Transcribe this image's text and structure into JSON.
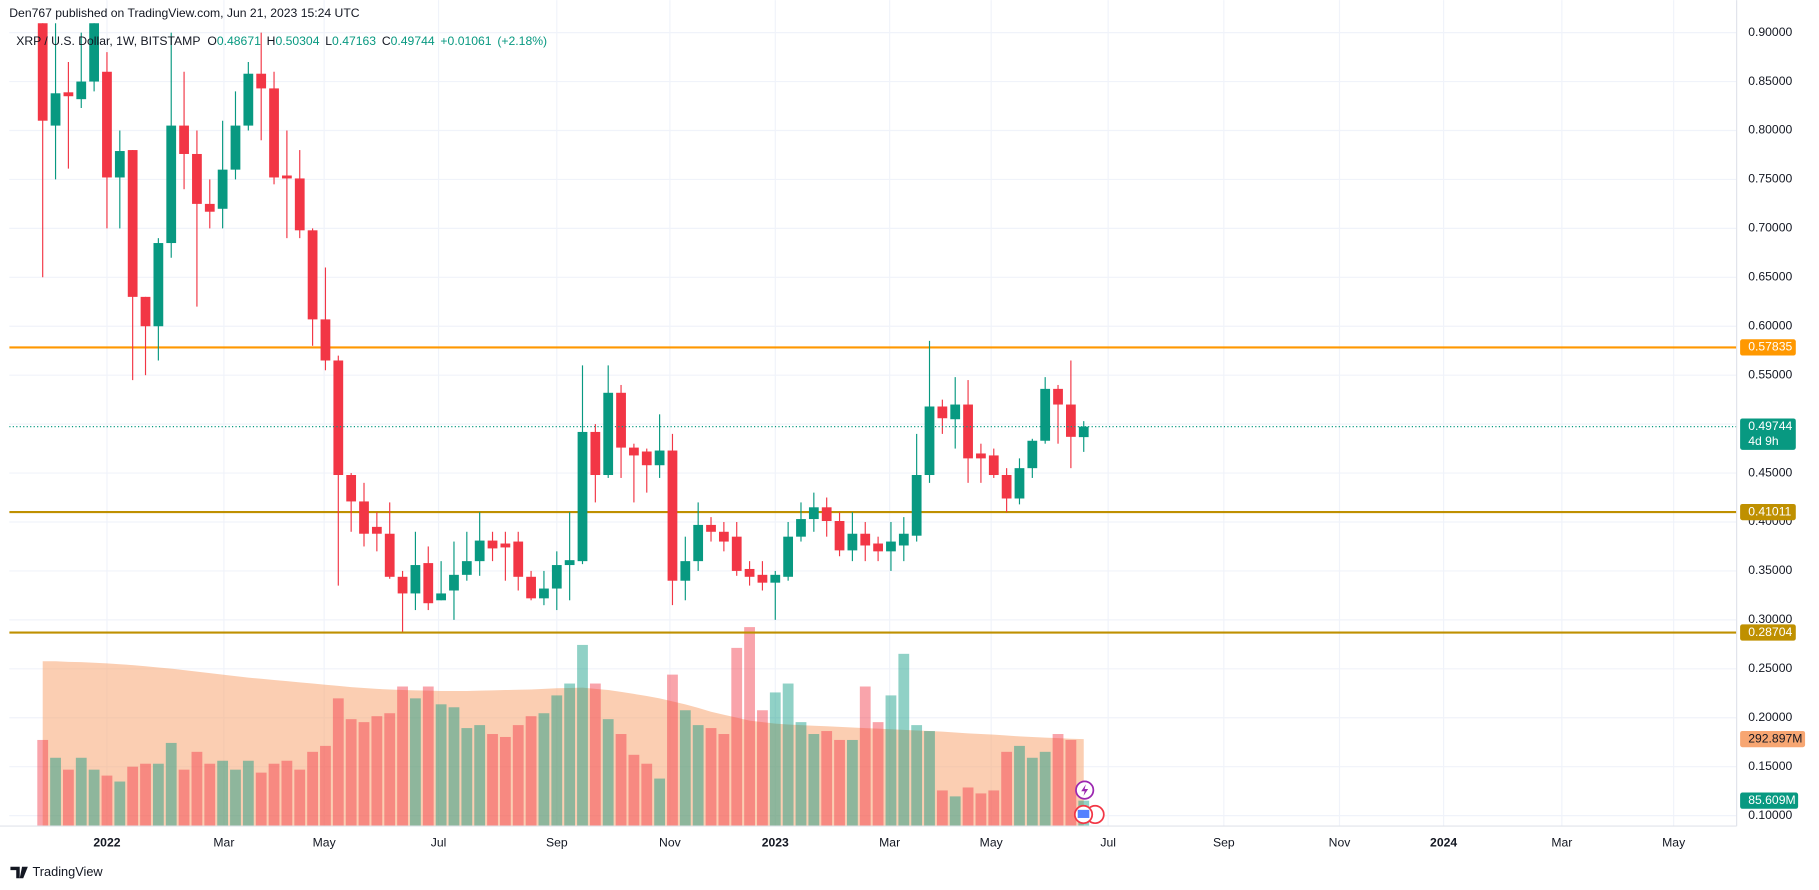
{
  "chart_data": {
    "type": "candlestick",
    "header": "Den767 published on TradingView.com, Jun 21, 2023 15:24 UTC",
    "symbol": "XRP / U.S. Dollar, 1W, BITSTAMP",
    "ohlc_letters": [
      "O",
      "H",
      "L",
      "C"
    ],
    "change": "+0.01061",
    "change_pct": "(+2.18%)",
    "up_color": "#089981",
    "down_color": "#f23645",
    "categories": [
      null,
      null,
      null,
      null,
      null,
      null,
      null,
      null,
      null,
      null,
      null,
      null,
      null,
      null,
      null,
      null,
      null,
      null,
      null,
      null,
      null,
      null,
      null,
      null,
      null,
      null,
      null,
      null,
      null,
      null,
      null,
      null,
      null,
      null,
      null,
      null,
      null,
      null,
      null,
      null,
      null,
      null,
      null,
      null,
      null,
      null,
      null,
      null,
      null,
      null,
      null,
      null,
      null,
      null,
      null,
      null,
      null,
      null,
      null,
      null,
      null,
      null,
      null,
      null,
      null,
      null,
      null,
      null,
      null,
      null,
      null,
      null,
      null,
      null,
      null,
      null,
      null,
      null,
      null,
      null,
      null,
      null
    ],
    "open": [
      0.91,
      0.805,
      0.839,
      0.832,
      0.85,
      0.86,
      0.752,
      0.78,
      0.63,
      0.6,
      0.685,
      0.805,
      0.776,
      0.725,
      0.72,
      0.76,
      0.805,
      0.858,
      0.843,
      0.754,
      0.751,
      0.698,
      0.607,
      0.565,
      0.448,
      0.421,
      0.395,
      0.388,
      0.344,
      0.327,
      0.358,
      0.32,
      0.33,
      0.346,
      0.36,
      0.381,
      0.378,
      0.38,
      0.344,
      0.322,
      0.332,
      0.356,
      0.36,
      0.492,
      0.448,
      0.532,
      0.476,
      0.472,
      0.458,
      0.473,
      0.34,
      0.36,
      0.397,
      0.39,
      0.385,
      0.352,
      0.346,
      0.338,
      0.344,
      0.385,
      0.403,
      0.415,
      0.401,
      0.371,
      0.388,
      0.378,
      0.37,
      0.376,
      0.386,
      0.448,
      0.518,
      0.505,
      0.52,
      0.47,
      0.468,
      0.448,
      0.424,
      0.455,
      0.483,
      0.536,
      0.52,
      0.48671
    ],
    "high": [
      0.93,
      0.93,
      0.87,
      0.9,
      0.93,
      0.88,
      0.8,
      0.78,
      0.63,
      0.69,
      0.9,
      0.86,
      0.8,
      0.75,
      0.81,
      0.84,
      0.87,
      0.9,
      0.86,
      0.8,
      0.78,
      0.7,
      0.66,
      0.57,
      0.45,
      0.44,
      0.41,
      0.42,
      0.35,
      0.39,
      0.375,
      0.36,
      0.38,
      0.39,
      0.41,
      0.39,
      0.39,
      0.39,
      0.35,
      0.35,
      0.37,
      0.41,
      0.56,
      0.5,
      0.56,
      0.54,
      0.48,
      0.475,
      0.51,
      0.49,
      0.385,
      0.42,
      0.405,
      0.4,
      0.4,
      0.36,
      0.36,
      0.35,
      0.4,
      0.42,
      0.43,
      0.425,
      0.41,
      0.41,
      0.4,
      0.385,
      0.4,
      0.405,
      0.49,
      0.585,
      0.525,
      0.548,
      0.545,
      0.48,
      0.475,
      0.455,
      0.465,
      0.485,
      0.548,
      0.54,
      0.565,
      0.50304
    ],
    "low": [
      0.65,
      0.75,
      0.761,
      0.823,
      0.84,
      0.7,
      0.7,
      0.545,
      0.55,
      0.565,
      0.67,
      0.74,
      0.62,
      0.7,
      0.7,
      0.75,
      0.8,
      0.79,
      0.745,
      0.69,
      0.69,
      0.58,
      0.555,
      0.335,
      0.39,
      0.375,
      0.37,
      0.342,
      0.288,
      0.31,
      0.31,
      0.32,
      0.3,
      0.34,
      0.345,
      0.36,
      0.34,
      0.33,
      0.32,
      0.315,
      0.31,
      0.32,
      0.357,
      0.42,
      0.445,
      0.445,
      0.42,
      0.43,
      0.445,
      0.315,
      0.32,
      0.35,
      0.38,
      0.37,
      0.345,
      0.335,
      0.33,
      0.3,
      0.34,
      0.38,
      0.39,
      0.385,
      0.365,
      0.36,
      0.36,
      0.36,
      0.35,
      0.36,
      0.38,
      0.44,
      0.49,
      0.475,
      0.44,
      0.44,
      0.445,
      0.41,
      0.418,
      0.445,
      0.48,
      0.48,
      0.455,
      0.47163
    ],
    "close": [
      0.81,
      0.838,
      0.835,
      0.85,
      0.91,
      0.752,
      0.779,
      0.63,
      0.6,
      0.685,
      0.805,
      0.776,
      0.725,
      0.717,
      0.76,
      0.805,
      0.858,
      0.843,
      0.752,
      0.751,
      0.698,
      0.607,
      0.565,
      0.448,
      0.421,
      0.388,
      0.388,
      0.344,
      0.327,
      0.356,
      0.317,
      0.327,
      0.346,
      0.36,
      0.381,
      0.373,
      0.374,
      0.344,
      0.322,
      0.332,
      0.356,
      0.361,
      0.492,
      0.448,
      0.532,
      0.476,
      0.468,
      0.458,
      0.473,
      0.34,
      0.36,
      0.397,
      0.39,
      0.38,
      0.35,
      0.344,
      0.338,
      0.346,
      0.385,
      0.403,
      0.415,
      0.401,
      0.371,
      0.388,
      0.376,
      0.37,
      0.38,
      0.388,
      0.448,
      0.518,
      0.506,
      0.52,
      0.465,
      0.465,
      0.448,
      0.424,
      0.455,
      0.483,
      0.536,
      0.52,
      0.487,
      0.49744
    ],
    "volume": {
      "values": [
        290,
        230,
        190,
        230,
        190,
        170,
        150,
        200,
        210,
        210,
        280,
        190,
        250,
        210,
        220,
        190,
        220,
        180,
        210,
        220,
        190,
        250,
        270,
        430,
        360,
        350,
        370,
        380,
        470,
        430,
        470,
        410,
        400,
        330,
        340,
        310,
        300,
        340,
        370,
        380,
        440,
        480,
        610,
        480,
        360,
        310,
        240,
        210,
        160,
        510,
        390,
        340,
        330,
        310,
        600,
        670,
        390,
        450,
        480,
        350,
        310,
        320,
        290,
        290,
        470,
        350,
        440,
        580,
        340,
        320,
        120,
        100,
        130,
        110,
        120,
        250,
        270,
        230,
        250,
        310,
        290,
        85.609
      ],
      "ma": [
        555,
        555,
        553,
        552,
        550,
        548,
        545,
        542,
        538,
        534,
        530,
        525,
        520,
        515,
        510,
        505,
        500,
        496,
        492,
        488,
        484,
        480,
        476,
        472,
        468,
        465,
        462,
        460,
        458,
        457,
        456,
        455,
        455,
        455,
        456,
        457,
        458,
        459,
        460,
        462,
        464,
        465,
        466,
        462,
        458,
        452,
        445,
        438,
        430,
        420,
        410,
        398,
        385,
        375,
        365,
        355,
        350,
        345,
        342,
        340,
        338,
        336,
        334,
        332,
        330,
        328,
        326,
        324,
        322,
        320,
        318,
        315,
        312,
        310,
        308,
        305,
        302,
        300,
        298,
        296,
        294,
        292.897
      ],
      "ma_color": "#f7a672",
      "ylim": [
        0,
        2703
      ],
      "last_label": "85.609M",
      "ma_last_label": "292.897M"
    },
    "levels": [
      {
        "value": 0.57835,
        "color": "#ff9800"
      },
      {
        "value": 0.41011,
        "color": "#bf9000"
      },
      {
        "value": 0.28704,
        "color": "#bf9000"
      }
    ],
    "countdown": "4d 9h",
    "xlim": [
      -2.6,
      131.8
    ],
    "xticks": [
      {
        "value": 5,
        "label": "2022"
      },
      {
        "value": 14.1,
        "label": "Mar"
      },
      {
        "value": 21.9,
        "label": "May"
      },
      {
        "value": 30.8,
        "label": "Jul"
      },
      {
        "value": 40,
        "label": "Sep"
      },
      {
        "value": 48.8,
        "label": "Nov"
      },
      {
        "value": 57,
        "label": "2023"
      },
      {
        "value": 65.9,
        "label": "Mar"
      },
      {
        "value": 73.8,
        "label": "May"
      },
      {
        "value": 82.9,
        "label": "Jul"
      },
      {
        "value": 91.9,
        "label": "Sep"
      },
      {
        "value": 100.9,
        "label": "Nov"
      },
      {
        "value": 109,
        "label": "2024"
      },
      {
        "value": 118.2,
        "label": "Mar"
      },
      {
        "value": 126.9,
        "label": "May"
      }
    ],
    "ylim": [
      0.0893,
      0.9095
    ],
    "yticks": [
      {
        "value": 0.1,
        "label": "0.10000"
      },
      {
        "value": 0.15,
        "label": "0.15000"
      },
      {
        "value": 0.2,
        "label": "0.20000"
      },
      {
        "value": 0.25,
        "label": "0.25000"
      },
      {
        "value": 0.3,
        "label": "0.30000"
      },
      {
        "value": 0.35,
        "label": "0.35000"
      },
      {
        "value": 0.4,
        "label": "0.40000"
      },
      {
        "value": 0.45,
        "label": "0.45000"
      },
      {
        "value": 0.5,
        "label": "0.50000"
      },
      {
        "value": 0.55,
        "label": "0.55000"
      },
      {
        "value": 0.6,
        "label": "0.60000"
      },
      {
        "value": 0.65,
        "label": "0.65000"
      },
      {
        "value": 0.7,
        "label": "0.70000"
      },
      {
        "value": 0.75,
        "label": "0.75000"
      },
      {
        "value": 0.8,
        "label": "0.80000"
      },
      {
        "value": 0.85,
        "label": "0.85000"
      },
      {
        "value": 0.9,
        "label": "0.90000"
      }
    ],
    "grid": true,
    "footer": "TradingView"
  }
}
